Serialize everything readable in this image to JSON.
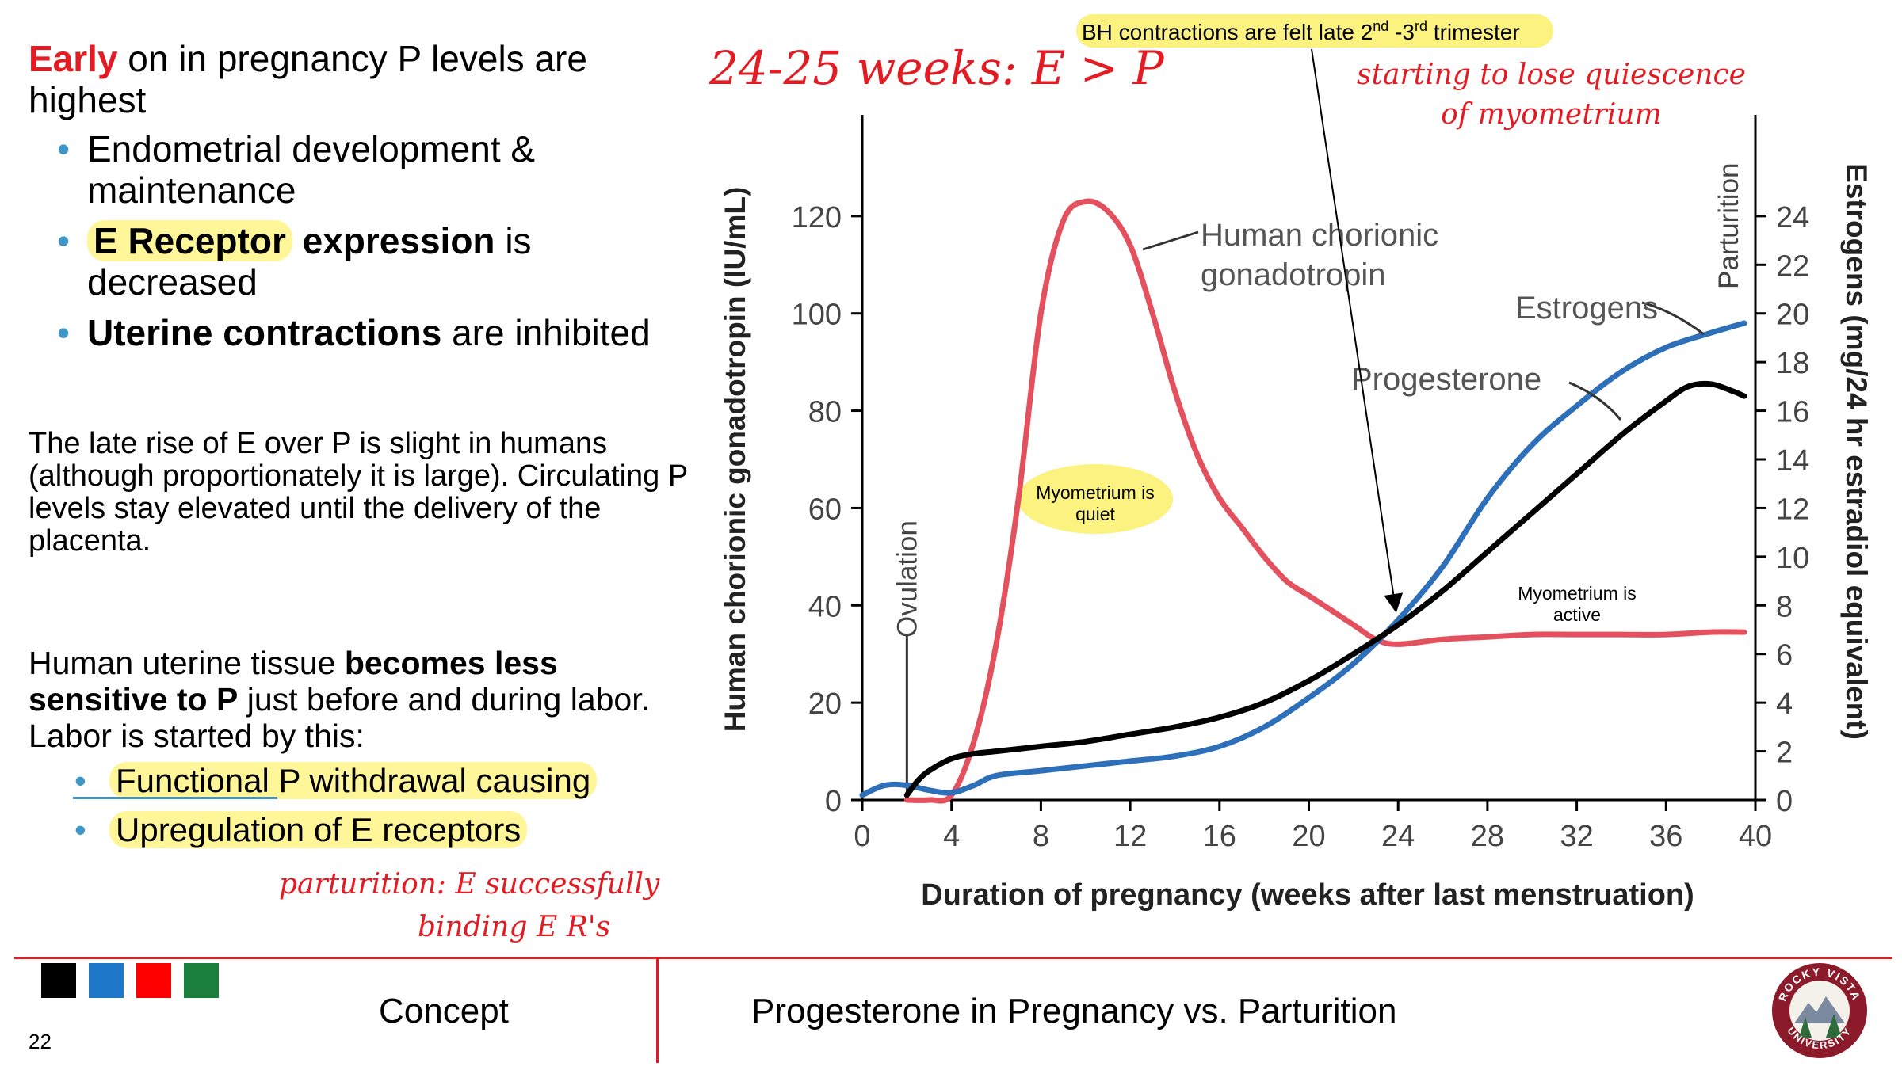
{
  "left": {
    "heading_emph": "Early",
    "heading_rest_1": " on in pregnancy P levels are",
    "heading_rest_2": "highest",
    "bullets": {
      "b1_l1": "Endometrial development &",
      "b1_l2": "maintenance",
      "b2_bold": "E Receptor",
      "b2_bold2": " expression",
      "b2_rest": " is",
      "b2_l2": "decreased",
      "b3_bold": "Uterine contractions",
      "b3_rest": " are inhibited"
    },
    "para1": [
      "The late rise of E over P is slight in humans",
      "(although proportionately it is large). Circulating P",
      "levels stay elevated until the delivery of the",
      "placenta."
    ],
    "para2_pre": "Human uterine tissue ",
    "para2_bold1": "becomes less",
    "para2_bold2": "sensitive to P",
    "para2_rest": " just before and during labor.",
    "para2_l3": "Labor is started by this:",
    "sub_bullets": [
      "Functional P withdrawal causing",
      "Upregulation of E receptors"
    ]
  },
  "handwritten": {
    "top": "24-25 weeks: E > P",
    "right_l1": "starting to lose quiescence",
    "right_l2": "of myometrium",
    "bottom_l1": "parturition: E successfully",
    "bottom_l2": "binding E R's"
  },
  "callouts": {
    "bh_pre": "BH contractions are felt late 2",
    "bh_sup1": "nd",
    "bh_mid": " -3",
    "bh_sup2": "rd",
    "bh_post": " trimester",
    "quiet_l1": "Myometrium is",
    "quiet_l2": "quiet",
    "active_l1": "Myometrium is",
    "active_l2": "active"
  },
  "footer": {
    "page_number": "22",
    "section": "Concept",
    "title": "Progesterone in Pregnancy vs. Parturition",
    "logo_top": "ROCKY VISTA",
    "logo_bottom": "UNIVERSITY",
    "swatches": [
      "#000000",
      "#1f77c9",
      "#ff0000",
      "#1a7f3a"
    ]
  },
  "chart_data": {
    "type": "line",
    "xlabel": "Duration of pregnancy (weeks after last menstruation)",
    "ylabel_left": "Human chorionic gonadotropin (IU/mL)",
    "ylabel_right": "Estrogens (mg/24 hr estradiol equivalent)",
    "x_ticks": [
      0,
      4,
      8,
      12,
      16,
      20,
      24,
      28,
      32,
      36,
      40
    ],
    "y_left_ticks": [
      0,
      20,
      40,
      60,
      80,
      100,
      120
    ],
    "y_right_ticks": [
      0,
      2,
      4,
      6,
      8,
      10,
      12,
      14,
      16,
      18,
      20,
      22,
      24
    ],
    "xlim": [
      0,
      40
    ],
    "ylim_left": [
      0,
      140
    ],
    "ylim_right": [
      0,
      28
    ],
    "markers": {
      "ovulation_week": 2,
      "ovulation_label": "Ovulation",
      "parturition_week": 40,
      "parturition_label": "Parturition"
    },
    "series": [
      {
        "name": "Human chorionic gonadotropin",
        "color": "#e3505e",
        "x": [
          2,
          3,
          4,
          5,
          6,
          7,
          8,
          9,
          10,
          11,
          12,
          13,
          14,
          15,
          16,
          17,
          18,
          19,
          20,
          21,
          22,
          23,
          24,
          26,
          28,
          30,
          32,
          34,
          36,
          38,
          39.5
        ],
        "y": [
          0,
          0,
          1,
          12,
          32,
          62,
          100,
          119,
          123,
          121,
          114,
          100,
          84,
          71,
          62,
          56,
          50,
          45,
          42,
          39,
          36,
          33,
          32,
          33,
          33.5,
          34,
          34,
          34,
          34,
          34.5,
          34.5
        ]
      },
      {
        "name": "Progesterone",
        "color": "#000000",
        "x": [
          2,
          2.5,
          3,
          4,
          5,
          6,
          8,
          10,
          12,
          14,
          16,
          18,
          20,
          22,
          24,
          26,
          28,
          30,
          32,
          34,
          36,
          37,
          38,
          39,
          39.5
        ],
        "y": [
          1,
          4,
          6,
          8.5,
          9.5,
          10,
          11,
          12,
          13.5,
          15,
          17,
          20,
          24.5,
          30,
          36,
          43,
          51,
          59,
          67,
          75,
          82,
          85,
          85.5,
          84,
          83
        ]
      },
      {
        "name": "Estrogens",
        "color": "#2e6fba",
        "x": [
          0,
          1,
          2,
          3,
          4,
          5,
          6,
          8,
          10,
          12,
          14,
          16,
          18,
          20,
          22,
          24,
          26,
          28,
          30,
          32,
          34,
          36,
          38,
          39.5
        ],
        "y": [
          1,
          3,
          3,
          2,
          1.5,
          3,
          5,
          6,
          7,
          8,
          9,
          11,
          15,
          21,
          28,
          37,
          48,
          62,
          73,
          81,
          88,
          93,
          96,
          98
        ]
      }
    ],
    "series_labels": {
      "hcg_l1": "Human chorionic",
      "hcg_l2": "gonadotropin",
      "est": "Estrogens",
      "prog": "Progesterone"
    }
  }
}
